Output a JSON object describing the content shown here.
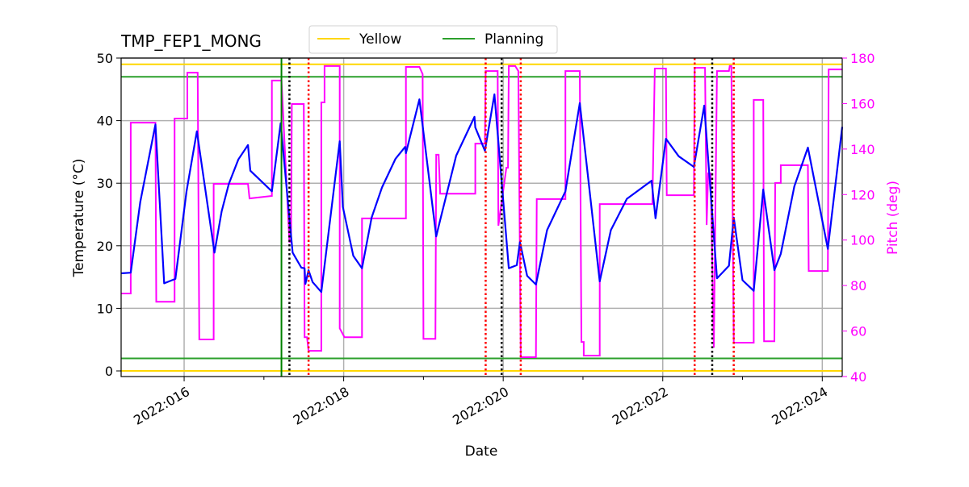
{
  "chart_data": {
    "type": "line",
    "title": "TMP_FEP1_MONG",
    "xlabel": "Date",
    "ylabel": "Temperature ($^\\circ$C)",
    "ylabel_display": "Temperature (°C)",
    "y2label": "Pitch (deg)",
    "xlim": [
      15.21,
      24.25
    ],
    "ylim": [
      -0.9,
      50
    ],
    "y2lim": [
      40,
      180
    ],
    "grid": true,
    "legend_placement": "top-center",
    "x_ticks": [
      16,
      18,
      20,
      22,
      24
    ],
    "x_tick_labels": [
      "2022:016",
      "2022:018",
      "2022:020",
      "2022:022",
      "2022:024"
    ],
    "x_minor_ticks": [
      17,
      19,
      21,
      23
    ],
    "y_ticks": [
      0,
      10,
      20,
      30,
      40,
      50
    ],
    "y2_ticks": [
      40,
      60,
      80,
      100,
      120,
      140,
      160,
      180
    ],
    "colors": {
      "temperature": "#0000ff",
      "pitch": "#ff00ff",
      "yellow": "#ffd700",
      "planning": "#2ca02c",
      "green_vline": "#008000",
      "red_vline": "#ff0000",
      "black_vline": "#000000",
      "grid": "#b0b0b0"
    },
    "legend": [
      {
        "name": "Yellow",
        "color": "#ffd700"
      },
      {
        "name": "Planning",
        "color": "#2ca02c"
      }
    ],
    "hlines": {
      "yellow": [
        49,
        0
      ],
      "planning": [
        47,
        2
      ]
    },
    "vlines": {
      "green": [
        17.22
      ],
      "black_dotted": [
        17.32,
        19.98,
        22.62
      ],
      "red_dotted": [
        17.56,
        19.78,
        20.22,
        22.4,
        22.89
      ]
    },
    "temperature": [
      [
        15.21,
        15.6
      ],
      [
        15.33,
        15.7
      ],
      [
        15.45,
        27
      ],
      [
        15.64,
        39.4
      ],
      [
        15.75,
        14.0
      ],
      [
        15.89,
        14.7
      ],
      [
        16.03,
        28.7
      ],
      [
        16.16,
        38.3
      ],
      [
        16.38,
        18.9
      ],
      [
        16.47,
        25.5
      ],
      [
        16.56,
        29.9
      ],
      [
        16.68,
        33.8
      ],
      [
        16.8,
        36.1
      ],
      [
        16.83,
        32.0
      ],
      [
        17.1,
        28.7
      ],
      [
        17.21,
        39.6
      ],
      [
        17.31,
        25.8
      ],
      [
        17.36,
        18.9
      ],
      [
        17.47,
        16.5
      ],
      [
        17.51,
        16.4
      ],
      [
        17.52,
        13.9
      ],
      [
        17.56,
        16.1
      ],
      [
        17.61,
        14.2
      ],
      [
        17.72,
        12.6
      ],
      [
        17.95,
        36.7
      ],
      [
        17.99,
        26.2
      ],
      [
        18.12,
        18.4
      ],
      [
        18.23,
        16.4
      ],
      [
        18.35,
        24.5
      ],
      [
        18.48,
        29.3
      ],
      [
        18.65,
        33.9
      ],
      [
        18.77,
        35.8
      ],
      [
        18.78,
        34.8
      ],
      [
        18.95,
        43.4
      ],
      [
        19.16,
        21.5
      ],
      [
        19.21,
        24.1
      ],
      [
        19.41,
        34.4
      ],
      [
        19.64,
        40.6
      ],
      [
        19.65,
        38.9
      ],
      [
        19.77,
        35.2
      ],
      [
        19.89,
        44.2
      ],
      [
        20.07,
        16.4
      ],
      [
        20.17,
        16.9
      ],
      [
        20.21,
        20.6
      ],
      [
        20.3,
        15.2
      ],
      [
        20.41,
        13.8
      ],
      [
        20.55,
        22.5
      ],
      [
        20.78,
        28.7
      ],
      [
        20.96,
        42.8
      ],
      [
        21.21,
        14.3
      ],
      [
        21.35,
        22.5
      ],
      [
        21.55,
        27.5
      ],
      [
        21.86,
        30.4
      ],
      [
        21.91,
        24.4
      ],
      [
        22.04,
        37.1
      ],
      [
        22.2,
        34.3
      ],
      [
        22.39,
        32.6
      ],
      [
        22.52,
        42.4
      ],
      [
        22.68,
        14.8
      ],
      [
        22.83,
        16.8
      ],
      [
        22.89,
        24.5
      ],
      [
        23.0,
        14.5
      ],
      [
        23.14,
        12.8
      ],
      [
        23.26,
        29.0
      ],
      [
        23.4,
        16.1
      ],
      [
        23.48,
        18.7
      ],
      [
        23.65,
        29.5
      ],
      [
        23.82,
        35.7
      ],
      [
        24.07,
        19.5
      ],
      [
        24.25,
        39.0
      ]
    ],
    "pitch": [
      [
        15.21,
        76.5
      ],
      [
        15.33,
        76.5
      ],
      [
        15.33,
        151.6
      ],
      [
        15.64,
        151.6
      ],
      [
        15.65,
        72.9
      ],
      [
        15.88,
        72.9
      ],
      [
        15.88,
        153.4
      ],
      [
        16.04,
        153.4
      ],
      [
        16.04,
        173.6
      ],
      [
        16.17,
        173.6
      ],
      [
        16.19,
        56.3
      ],
      [
        16.37,
        56.3
      ],
      [
        16.37,
        124.7
      ],
      [
        16.8,
        124.7
      ],
      [
        16.82,
        118.3
      ],
      [
        17.1,
        119.4
      ],
      [
        17.1,
        170.1
      ],
      [
        17.22,
        170.1
      ],
      [
        17.32,
        99.2
      ],
      [
        17.34,
        99.2
      ],
      [
        17.35,
        159.8
      ],
      [
        17.5,
        159.8
      ],
      [
        17.51,
        57.3
      ],
      [
        17.54,
        57.3
      ],
      [
        17.56,
        51.3
      ],
      [
        17.72,
        51.3
      ],
      [
        17.72,
        160.5
      ],
      [
        17.76,
        160.5
      ],
      [
        17.76,
        176.5
      ],
      [
        17.95,
        176.5
      ],
      [
        17.95,
        61.2
      ],
      [
        18.01,
        57.3
      ],
      [
        18.23,
        57.3
      ],
      [
        18.23,
        109.5
      ],
      [
        18.78,
        109.5
      ],
      [
        18.78,
        176.1
      ],
      [
        18.95,
        176.1
      ],
      [
        18.99,
        172.9
      ],
      [
        19.0,
        56.6
      ],
      [
        19.15,
        56.6
      ],
      [
        19.16,
        137.5
      ],
      [
        19.19,
        137.5
      ],
      [
        19.21,
        120.4
      ],
      [
        19.65,
        120.4
      ],
      [
        19.65,
        142.4
      ],
      [
        19.77,
        142.4
      ],
      [
        19.78,
        174.3
      ],
      [
        19.93,
        174.3
      ],
      [
        19.94,
        106.3
      ],
      [
        20.04,
        131.8
      ],
      [
        20.06,
        131.8
      ],
      [
        20.07,
        176.5
      ],
      [
        20.15,
        176.5
      ],
      [
        20.19,
        174.3
      ],
      [
        20.22,
        48.5
      ],
      [
        20.41,
        48.5
      ],
      [
        20.42,
        118.0
      ],
      [
        20.78,
        118.0
      ],
      [
        20.78,
        174.3
      ],
      [
        20.96,
        174.3
      ],
      [
        20.98,
        55.2
      ],
      [
        21.01,
        55.2
      ],
      [
        21.01,
        49.2
      ],
      [
        21.21,
        49.2
      ],
      [
        21.21,
        115.8
      ],
      [
        21.87,
        115.8
      ],
      [
        21.9,
        175.4
      ],
      [
        22.04,
        175.4
      ],
      [
        22.05,
        119.7
      ],
      [
        22.39,
        119.7
      ],
      [
        22.4,
        175.7
      ],
      [
        22.53,
        175.7
      ],
      [
        22.55,
        106.6
      ],
      [
        22.57,
        129.3
      ],
      [
        22.6,
        129.3
      ],
      [
        22.64,
        52.7
      ],
      [
        22.68,
        174.3
      ],
      [
        22.83,
        174.3
      ],
      [
        22.84,
        176.5
      ],
      [
        22.86,
        176.5
      ],
      [
        22.89,
        54.9
      ],
      [
        23.14,
        54.9
      ],
      [
        23.14,
        161.6
      ],
      [
        23.26,
        161.6
      ],
      [
        23.27,
        55.5
      ],
      [
        23.4,
        55.5
      ],
      [
        23.41,
        125.1
      ],
      [
        23.48,
        125.1
      ],
      [
        23.48,
        132.9
      ],
      [
        23.82,
        132.9
      ],
      [
        23.83,
        86.4
      ],
      [
        24.07,
        86.4
      ],
      [
        24.08,
        175.0
      ],
      [
        24.25,
        175.0
      ]
    ]
  }
}
